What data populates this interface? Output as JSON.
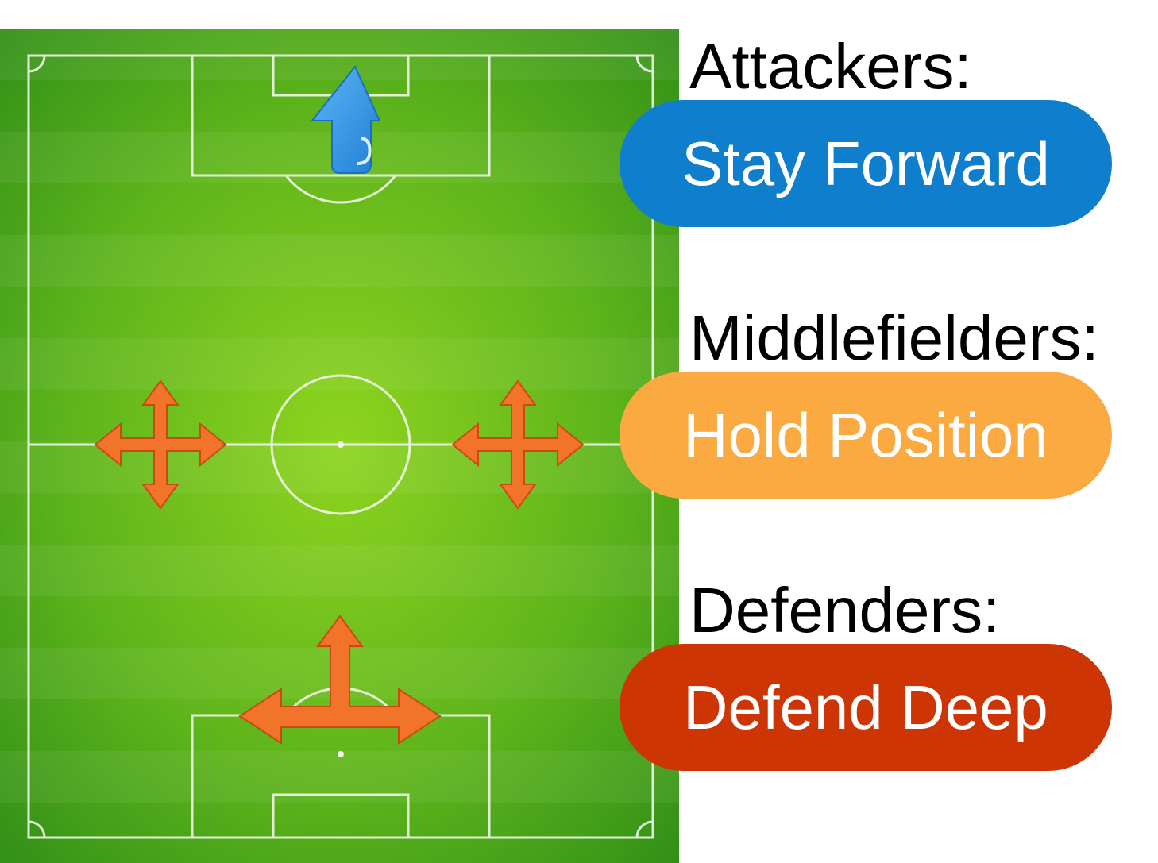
{
  "groups": {
    "attackers": {
      "label": "Attackers:",
      "instruction": "Stay Forward",
      "color": "#0f7ecc"
    },
    "midfielders": {
      "label": "Middlefielders:",
      "instruction": "Hold Position",
      "color": "#fbaa42"
    },
    "defenders": {
      "label": "Defenders:",
      "instruction": "Defend Deep",
      "color": "#cd3505"
    }
  },
  "colors": {
    "pitch_light": "#8ed41f",
    "pitch_dark": "#2c8a17",
    "line": "#f2f7ea",
    "attack_arrow": "#2b8ee2",
    "move_arrow": "#f2732a"
  },
  "icons": {
    "attackers": "arrow-up-icon",
    "midfielders": "four-way-arrow-icon",
    "defenders": "three-way-arrow-icon"
  }
}
